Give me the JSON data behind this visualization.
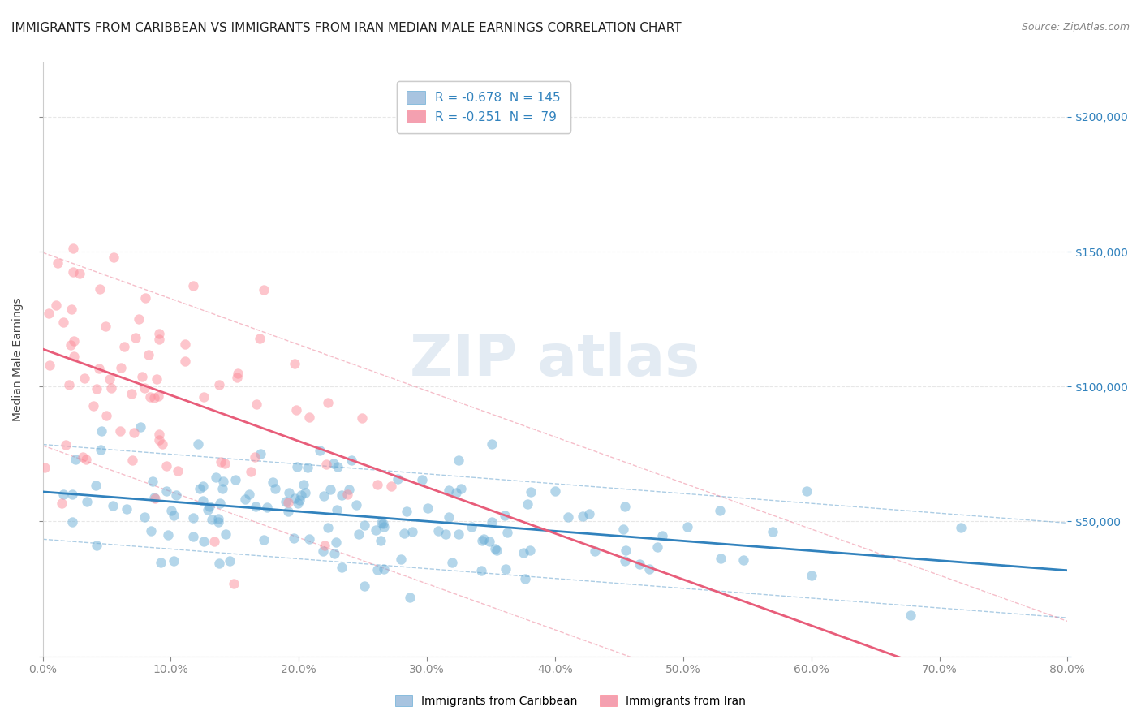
{
  "title": "IMMIGRANTS FROM CARIBBEAN VS IMMIGRANTS FROM IRAN MEDIAN MALE EARNINGS CORRELATION CHART",
  "source": "Source: ZipAtlas.com",
  "xlabel": "",
  "ylabel": "Median Male Earnings",
  "legend_entries": [
    {
      "label": "R = -0.678  N = 145",
      "color": "#a8c4e0"
    },
    {
      "label": "R = -0.251  N =  79",
      "color": "#f4a0b0"
    }
  ],
  "legend_bottom": [
    {
      "label": "Immigrants from Caribbean",
      "color": "#a8c4e0"
    },
    {
      "label": "Immigrants from Iran",
      "color": "#f4a0b0"
    }
  ],
  "caribbean_R": -0.678,
  "caribbean_N": 145,
  "iran_R": -0.251,
  "iran_N": 79,
  "xlim": [
    0.0,
    0.8
  ],
  "ylim": [
    0,
    220000
  ],
  "yticks": [
    0,
    50000,
    100000,
    150000,
    200000
  ],
  "xticks": [
    0.0,
    0.1,
    0.2,
    0.3,
    0.4,
    0.5,
    0.6,
    0.7,
    0.8
  ],
  "caribbean_color": "#6baed6",
  "iran_color": "#fc8d9a",
  "caribbean_line_color": "#3182bd",
  "iran_line_color": "#e85d7a",
  "background_color": "#ffffff",
  "watermark": "ZIPatlas",
  "title_fontsize": 11,
  "axis_label_fontsize": 10,
  "tick_fontsize": 10
}
